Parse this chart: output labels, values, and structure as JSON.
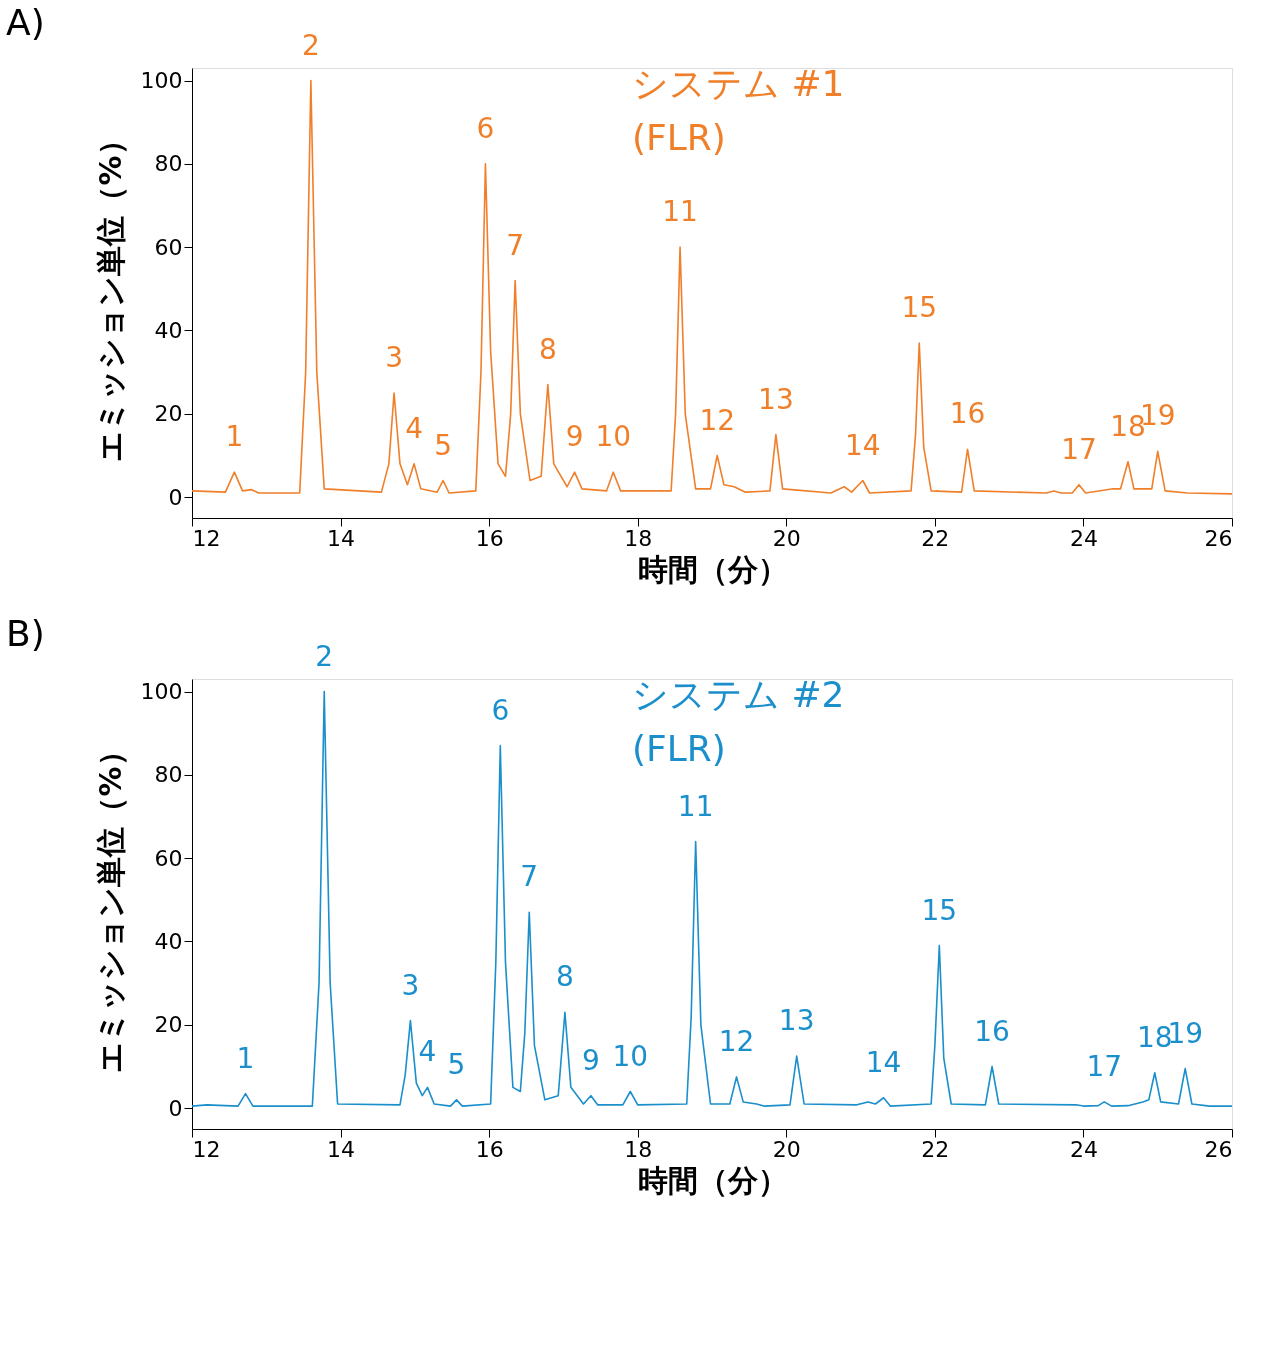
{
  "chart_data": [
    {
      "type": "line",
      "title": "A)",
      "xlabel": "時間（分）",
      "ylabel": "エミッション単位（%）",
      "xlim": [
        12,
        26
      ],
      "ylim": [
        -5,
        103
      ],
      "xticks": [
        12,
        14,
        16,
        18,
        20,
        22,
        24,
        26
      ],
      "yticks": [
        0,
        20,
        40,
        60,
        80,
        100
      ],
      "grid": false,
      "legend": false,
      "marker": "none",
      "line_style": "solid",
      "series": [
        {
          "color": "#f07f2a",
          "x": [
            12.0,
            12.45,
            12.57,
            12.68,
            12.8,
            12.9,
            13.45,
            13.53,
            13.6,
            13.68,
            13.78,
            14.55,
            14.65,
            14.72,
            14.8,
            14.9,
            14.99,
            15.08,
            15.3,
            15.38,
            15.46,
            15.82,
            15.89,
            15.95,
            16.02,
            16.12,
            16.22,
            16.29,
            16.35,
            16.42,
            16.55,
            16.7,
            16.79,
            16.87,
            17.05,
            17.15,
            17.25,
            17.58,
            17.67,
            17.77,
            18.45,
            18.51,
            18.57,
            18.64,
            18.78,
            18.98,
            19.07,
            19.16,
            19.3,
            19.45,
            19.78,
            19.86,
            19.95,
            20.6,
            20.78,
            20.88,
            21.03,
            21.12,
            21.68,
            21.74,
            21.79,
            21.85,
            21.95,
            22.36,
            22.44,
            22.53,
            23.5,
            23.6,
            23.7,
            23.85,
            23.94,
            24.03,
            24.4,
            24.5,
            24.6,
            24.68,
            24.92,
            25.0,
            25.1,
            25.4,
            26.0
          ],
          "values": [
            1.5,
            1.2,
            6,
            1.5,
            1.8,
            1,
            1,
            30,
            100,
            30,
            2,
            1.2,
            8,
            25,
            8,
            3,
            8,
            2,
            1.2,
            4,
            1,
            1.5,
            30,
            80,
            35,
            8,
            5,
            20,
            52,
            20,
            4,
            5,
            27,
            8,
            2.5,
            6,
            2,
            1.5,
            6,
            1.5,
            1.5,
            20,
            60,
            20,
            2,
            2,
            10,
            3,
            2.5,
            1.2,
            1.5,
            15,
            2,
            1,
            2.5,
            1.2,
            4,
            1,
            1.5,
            15,
            37,
            12,
            1.5,
            1.2,
            11.5,
            1.5,
            1,
            1.5,
            1,
            1,
            3,
            1,
            2,
            2,
            8.5,
            2,
            2,
            11,
            1.5,
            1,
            0.8
          ]
        }
      ],
      "annotations": [
        "システム #1",
        "(FLR)",
        {
          "text": "1",
          "x": 12.57,
          "y": 6
        },
        {
          "text": "2",
          "x": 13.6,
          "y": 100
        },
        {
          "text": "3",
          "x": 14.72,
          "y": 25
        },
        {
          "text": "4",
          "x": 14.99,
          "y": 8
        },
        {
          "text": "5",
          "x": 15.38,
          "y": 4
        },
        {
          "text": "6",
          "x": 15.95,
          "y": 80
        },
        {
          "text": "7",
          "x": 16.35,
          "y": 52
        },
        {
          "text": "8",
          "x": 16.79,
          "y": 27
        },
        {
          "text": "9",
          "x": 17.15,
          "y": 6
        },
        {
          "text": "10",
          "x": 17.67,
          "y": 6
        },
        {
          "text": "11",
          "x": 18.57,
          "y": 60
        },
        {
          "text": "12",
          "x": 19.07,
          "y": 10
        },
        {
          "text": "13",
          "x": 19.86,
          "y": 15
        },
        {
          "text": "14",
          "x": 21.03,
          "y": 4
        },
        {
          "text": "15",
          "x": 21.79,
          "y": 37
        },
        {
          "text": "16",
          "x": 22.44,
          "y": 11.5
        },
        {
          "text": "17",
          "x": 23.94,
          "y": 3
        },
        {
          "text": "18",
          "x": 24.6,
          "y": 8.5
        },
        {
          "text": "19",
          "x": 25.0,
          "y": 11
        }
      ]
    },
    {
      "type": "line",
      "title": "B)",
      "xlabel": "時間（分）",
      "ylabel": "エミッション単位（%）",
      "xlim": [
        12,
        26
      ],
      "ylim": [
        -5,
        103
      ],
      "xticks": [
        12,
        14,
        16,
        18,
        20,
        22,
        24,
        26
      ],
      "yticks": [
        0,
        20,
        40,
        60,
        80,
        100
      ],
      "grid": false,
      "legend": false,
      "marker": "none",
      "line_style": "solid",
      "series": [
        {
          "color": "#1a8fcc",
          "x": [
            12.0,
            12.2,
            12.62,
            12.72,
            12.82,
            13.62,
            13.71,
            13.78,
            13.86,
            13.96,
            14.8,
            14.87,
            14.94,
            15.02,
            15.1,
            15.17,
            15.26,
            15.48,
            15.56,
            15.64,
            16.02,
            16.09,
            16.15,
            16.22,
            16.32,
            16.42,
            16.48,
            16.54,
            16.61,
            16.75,
            16.93,
            17.02,
            17.1,
            17.27,
            17.37,
            17.46,
            17.8,
            17.9,
            18.0,
            18.66,
            18.72,
            18.78,
            18.85,
            18.98,
            19.24,
            19.33,
            19.42,
            19.6,
            19.7,
            20.05,
            20.14,
            20.24,
            20.95,
            21.1,
            21.2,
            21.31,
            21.4,
            21.95,
            22.0,
            22.06,
            22.12,
            22.22,
            22.68,
            22.77,
            22.86,
            23.9,
            24.0,
            24.2,
            24.28,
            24.38,
            24.6,
            24.8,
            24.88,
            24.96,
            25.04,
            25.28,
            25.37,
            25.46,
            25.7,
            26.0
          ],
          "values": [
            0.5,
            0.8,
            0.5,
            3.5,
            0.5,
            0.5,
            30,
            100,
            30,
            1,
            0.8,
            8,
            21,
            6,
            3,
            5,
            1,
            0.5,
            2,
            0.5,
            1,
            35,
            87,
            35,
            5,
            4,
            18,
            47,
            15,
            2,
            3,
            23,
            5,
            1,
            3,
            0.8,
            0.8,
            4,
            0.8,
            1,
            22,
            64,
            20,
            1,
            1,
            7.5,
            1.5,
            1,
            0.5,
            0.8,
            12.5,
            1,
            0.8,
            1.5,
            1,
            2.5,
            0.5,
            1,
            15,
            39,
            12,
            1,
            0.8,
            10,
            1,
            0.8,
            0.5,
            0.6,
            1.5,
            0.5,
            0.6,
            1.5,
            2,
            8.5,
            1.5,
            1,
            9.5,
            1,
            0.5,
            0.5
          ]
        }
      ],
      "annotations": [
        "システム #2",
        "(FLR)",
        {
          "text": "1",
          "x": 12.72,
          "y": 3.5
        },
        {
          "text": "2",
          "x": 13.78,
          "y": 100
        },
        {
          "text": "3",
          "x": 14.94,
          "y": 21
        },
        {
          "text": "4",
          "x": 15.17,
          "y": 5
        },
        {
          "text": "5",
          "x": 15.56,
          "y": 2
        },
        {
          "text": "6",
          "x": 16.15,
          "y": 87
        },
        {
          "text": "7",
          "x": 16.54,
          "y": 47
        },
        {
          "text": "8",
          "x": 17.02,
          "y": 23
        },
        {
          "text": "9",
          "x": 17.37,
          "y": 3
        },
        {
          "text": "10",
          "x": 17.9,
          "y": 4
        },
        {
          "text": "11",
          "x": 18.78,
          "y": 64
        },
        {
          "text": "12",
          "x": 19.33,
          "y": 7.5
        },
        {
          "text": "13",
          "x": 20.14,
          "y": 12.5
        },
        {
          "text": "14",
          "x": 21.31,
          "y": 2.5
        },
        {
          "text": "15",
          "x": 22.06,
          "y": 39
        },
        {
          "text": "16",
          "x": 22.77,
          "y": 10
        },
        {
          "text": "17",
          "x": 24.28,
          "y": 1.5
        },
        {
          "text": "18",
          "x": 24.96,
          "y": 8.5
        },
        {
          "text": "19",
          "x": 25.37,
          "y": 9.5
        }
      ]
    }
  ]
}
